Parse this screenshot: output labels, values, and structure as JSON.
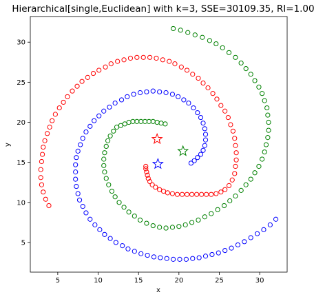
{
  "chart_data": {
    "type": "scatter",
    "title": "Hierarchical[single,Euclidean] with k=3, SSE=30109.35, RI=1.00",
    "xlabel": "x",
    "ylabel": "y",
    "xlim": [
      1.6,
      33.4
    ],
    "ylim": [
      1.3,
      33.2
    ],
    "xticks": [
      5,
      10,
      15,
      20,
      25,
      30
    ],
    "yticks": [
      5,
      10,
      15,
      20,
      25,
      30
    ],
    "grid": false,
    "marker": "circle-open",
    "series": [
      {
        "color": "#ff0000",
        "points": [
          [
            3.9,
            9.6
          ],
          [
            3.5,
            10.4
          ],
          [
            3.2,
            11.3
          ],
          [
            3.0,
            12.2
          ],
          [
            2.9,
            13.1
          ],
          [
            2.9,
            14.1
          ],
          [
            3.0,
            15.1
          ],
          [
            3.1,
            16.0
          ],
          [
            3.2,
            16.9
          ],
          [
            3.4,
            17.7
          ],
          [
            3.7,
            18.6
          ],
          [
            4.0,
            19.4
          ],
          [
            4.3,
            20.2
          ],
          [
            4.7,
            21.0
          ],
          [
            5.2,
            21.8
          ],
          [
            5.7,
            22.5
          ],
          [
            6.2,
            23.2
          ],
          [
            6.8,
            23.9
          ],
          [
            7.4,
            24.5
          ],
          [
            8.0,
            25.1
          ],
          [
            8.7,
            25.6
          ],
          [
            9.4,
            26.1
          ],
          [
            10.1,
            26.5
          ],
          [
            10.9,
            26.9
          ],
          [
            11.6,
            27.3
          ],
          [
            12.4,
            27.6
          ],
          [
            13.2,
            27.8
          ],
          [
            14.0,
            28.0
          ],
          [
            14.8,
            28.1
          ],
          [
            15.6,
            28.1
          ],
          [
            16.4,
            28.1
          ],
          [
            17.2,
            28.0
          ],
          [
            18.0,
            27.8
          ],
          [
            18.8,
            27.6
          ],
          [
            19.5,
            27.3
          ],
          [
            20.3,
            26.9
          ],
          [
            21.0,
            26.5
          ],
          [
            21.7,
            26.0
          ],
          [
            22.4,
            25.5
          ],
          [
            23.0,
            24.9
          ],
          [
            23.6,
            24.3
          ],
          [
            24.2,
            23.6
          ],
          [
            24.7,
            22.9
          ],
          [
            25.2,
            22.1
          ],
          [
            25.7,
            21.4
          ],
          [
            26.1,
            20.6
          ],
          [
            26.4,
            19.7
          ],
          [
            26.7,
            18.9
          ],
          [
            26.9,
            18.0
          ],
          [
            27.0,
            17.1
          ],
          [
            27.1,
            16.2
          ],
          [
            27.1,
            15.3
          ],
          [
            27.0,
            14.5
          ],
          [
            26.9,
            13.6
          ],
          [
            26.6,
            12.8
          ],
          [
            26.2,
            12.1
          ],
          [
            25.7,
            11.6
          ],
          [
            25.2,
            11.3
          ],
          [
            24.6,
            11.1
          ],
          [
            24.0,
            11.0
          ],
          [
            23.4,
            11.0
          ],
          [
            22.8,
            11.0
          ],
          [
            22.2,
            11.0
          ],
          [
            21.6,
            11.0
          ],
          [
            21.0,
            11.0
          ],
          [
            20.4,
            11.0
          ],
          [
            19.8,
            11.0
          ],
          [
            19.2,
            11.1
          ],
          [
            18.6,
            11.2
          ],
          [
            18.1,
            11.4
          ],
          [
            17.6,
            11.6
          ],
          [
            17.1,
            11.9
          ],
          [
            16.7,
            12.2
          ],
          [
            16.4,
            12.6
          ],
          [
            16.2,
            13.0
          ],
          [
            16.1,
            13.4
          ],
          [
            16.0,
            13.8
          ],
          [
            15.9,
            14.2
          ],
          [
            15.9,
            14.5
          ]
        ]
      },
      {
        "color": "#0000ff",
        "points": [
          [
            32.0,
            7.9
          ],
          [
            31.3,
            7.2
          ],
          [
            30.5,
            6.6
          ],
          [
            29.7,
            6.1
          ],
          [
            28.9,
            5.6
          ],
          [
            28.1,
            5.1
          ],
          [
            27.3,
            4.7
          ],
          [
            26.5,
            4.3
          ],
          [
            25.7,
            4.0
          ],
          [
            24.9,
            3.7
          ],
          [
            24.1,
            3.5
          ],
          [
            23.3,
            3.3
          ],
          [
            22.5,
            3.1
          ],
          [
            21.7,
            3.0
          ],
          [
            20.9,
            2.9
          ],
          [
            20.1,
            2.9
          ],
          [
            19.3,
            2.9
          ],
          [
            18.5,
            3.0
          ],
          [
            17.7,
            3.1
          ],
          [
            16.9,
            3.2
          ],
          [
            16.1,
            3.4
          ],
          [
            15.3,
            3.6
          ],
          [
            14.5,
            3.9
          ],
          [
            13.7,
            4.2
          ],
          [
            13.0,
            4.6
          ],
          [
            12.2,
            5.0
          ],
          [
            11.5,
            5.5
          ],
          [
            10.8,
            6.0
          ],
          [
            10.2,
            6.6
          ],
          [
            9.6,
            7.2
          ],
          [
            9.0,
            7.9
          ],
          [
            8.5,
            8.7
          ],
          [
            8.1,
            9.5
          ],
          [
            7.7,
            10.3
          ],
          [
            7.5,
            11.1
          ],
          [
            7.3,
            12.0
          ],
          [
            7.2,
            12.9
          ],
          [
            7.2,
            13.8
          ],
          [
            7.2,
            14.7
          ],
          [
            7.3,
            15.6
          ],
          [
            7.5,
            16.4
          ],
          [
            7.8,
            17.2
          ],
          [
            8.1,
            18.0
          ],
          [
            8.5,
            18.8
          ],
          [
            9.0,
            19.5
          ],
          [
            9.5,
            20.2
          ],
          [
            10.1,
            20.8
          ],
          [
            10.7,
            21.4
          ],
          [
            11.4,
            21.9
          ],
          [
            12.1,
            22.4
          ],
          [
            12.9,
            22.8
          ],
          [
            13.6,
            23.2
          ],
          [
            14.4,
            23.5
          ],
          [
            15.2,
            23.7
          ],
          [
            16.0,
            23.8
          ],
          [
            16.8,
            23.9
          ],
          [
            17.6,
            23.8
          ],
          [
            18.4,
            23.7
          ],
          [
            19.2,
            23.5
          ],
          [
            19.9,
            23.2
          ],
          [
            20.6,
            22.8
          ],
          [
            21.2,
            22.4
          ],
          [
            21.8,
            21.8
          ],
          [
            22.3,
            21.2
          ],
          [
            22.7,
            20.6
          ],
          [
            23.0,
            19.9
          ],
          [
            23.2,
            19.2
          ],
          [
            23.3,
            18.5
          ],
          [
            23.3,
            17.8
          ],
          [
            23.2,
            17.1
          ],
          [
            23.0,
            16.5
          ],
          [
            22.7,
            16.0
          ],
          [
            22.3,
            15.6
          ],
          [
            21.9,
            15.2
          ],
          [
            21.5,
            14.9
          ]
        ]
      },
      {
        "color": "#008000",
        "points": [
          [
            19.3,
            31.7
          ],
          [
            20.2,
            31.5
          ],
          [
            21.1,
            31.2
          ],
          [
            22.0,
            30.9
          ],
          [
            22.9,
            30.6
          ],
          [
            23.8,
            30.2
          ],
          [
            24.6,
            29.8
          ],
          [
            25.4,
            29.3
          ],
          [
            26.2,
            28.7
          ],
          [
            27.0,
            28.1
          ],
          [
            27.7,
            27.4
          ],
          [
            28.3,
            26.7
          ],
          [
            28.9,
            26.0
          ],
          [
            29.4,
            25.2
          ],
          [
            29.9,
            24.4
          ],
          [
            30.3,
            23.6
          ],
          [
            30.6,
            22.7
          ],
          [
            30.9,
            21.8
          ],
          [
            31.0,
            20.9
          ],
          [
            31.1,
            20.0
          ],
          [
            31.1,
            19.0
          ],
          [
            31.0,
            18.1
          ],
          [
            30.8,
            17.2
          ],
          [
            30.6,
            16.3
          ],
          [
            30.3,
            15.4
          ],
          [
            29.9,
            14.5
          ],
          [
            29.4,
            13.7
          ],
          [
            28.9,
            12.9
          ],
          [
            28.3,
            12.2
          ],
          [
            27.7,
            11.5
          ],
          [
            27.0,
            10.8
          ],
          [
            26.3,
            10.2
          ],
          [
            25.6,
            9.6
          ],
          [
            24.8,
            9.1
          ],
          [
            24.0,
            8.6
          ],
          [
            23.2,
            8.2
          ],
          [
            22.4,
            7.8
          ],
          [
            21.6,
            7.5
          ],
          [
            20.8,
            7.2
          ],
          [
            20.0,
            7.0
          ],
          [
            19.2,
            6.9
          ],
          [
            18.4,
            6.8
          ],
          [
            17.6,
            6.9
          ],
          [
            16.8,
            7.1
          ],
          [
            16.0,
            7.4
          ],
          [
            15.2,
            7.8
          ],
          [
            14.5,
            8.3
          ],
          [
            13.8,
            8.8
          ],
          [
            13.2,
            9.4
          ],
          [
            12.6,
            10.0
          ],
          [
            12.1,
            10.7
          ],
          [
            11.7,
            11.4
          ],
          [
            11.3,
            12.2
          ],
          [
            11.0,
            13.0
          ],
          [
            10.8,
            13.8
          ],
          [
            10.7,
            14.6
          ],
          [
            10.7,
            15.4
          ],
          [
            10.8,
            16.2
          ],
          [
            11.0,
            17.0
          ],
          [
            11.2,
            17.7
          ],
          [
            11.5,
            18.3
          ],
          [
            11.9,
            18.9
          ],
          [
            12.3,
            19.4
          ],
          [
            12.8,
            19.6
          ],
          [
            13.3,
            19.8
          ],
          [
            13.8,
            20.0
          ],
          [
            14.3,
            20.1
          ],
          [
            14.8,
            20.1
          ],
          [
            15.3,
            20.1
          ],
          [
            15.8,
            20.1
          ],
          [
            16.3,
            20.1
          ],
          [
            16.8,
            20.1
          ],
          [
            17.3,
            20.0
          ],
          [
            17.8,
            19.9
          ],
          [
            18.3,
            19.8
          ]
        ]
      }
    ],
    "centroids": [
      {
        "color": "#ff0000",
        "x": 17.3,
        "y": 17.9
      },
      {
        "color": "#0000ff",
        "x": 17.4,
        "y": 14.8
      },
      {
        "color": "#008000",
        "x": 20.5,
        "y": 16.4
      }
    ]
  }
}
